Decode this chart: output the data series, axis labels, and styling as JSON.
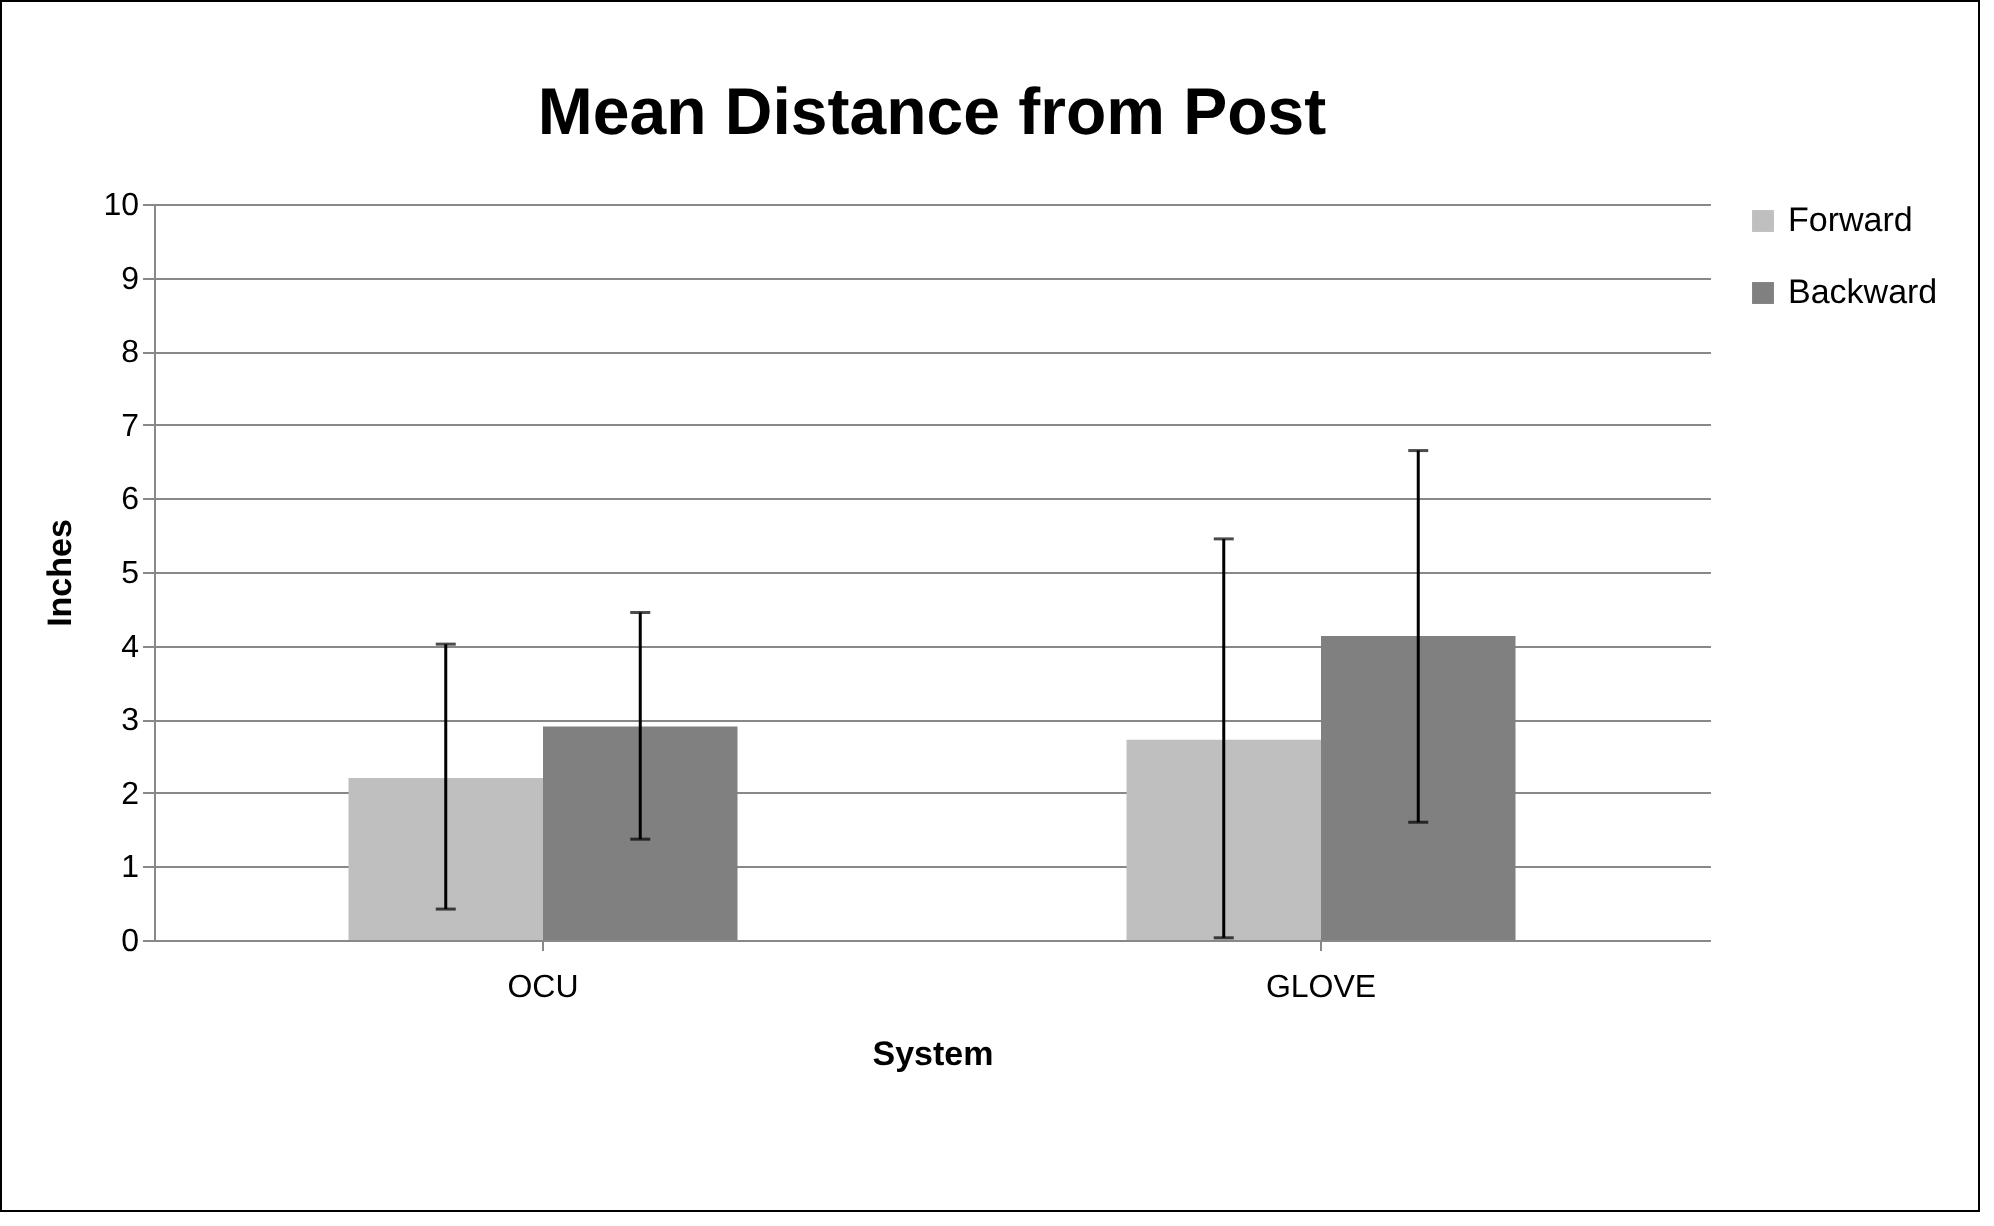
{
  "chart_data": {
    "type": "bar",
    "title": "Mean Distance from Post",
    "xlabel": "System",
    "ylabel": "Inches",
    "categories": [
      "OCU",
      "GLOVE"
    ],
    "series": [
      {
        "name": "Forward",
        "color": "#bfbfbf",
        "values": [
          2.2,
          2.72
        ],
        "errors": [
          [
            0.42,
            4.02
          ],
          [
            0.03,
            5.45
          ]
        ]
      },
      {
        "name": "Backward",
        "color": "#808080",
        "values": [
          2.9,
          4.13
        ],
        "errors": [
          [
            1.37,
            4.45
          ],
          [
            1.6,
            6.65
          ]
        ]
      }
    ],
    "ylim": [
      0,
      10
    ],
    "yticks": [
      0,
      1,
      2,
      3,
      4,
      5,
      6,
      7,
      8,
      9,
      10
    ],
    "grid": "y",
    "legend": "right"
  }
}
